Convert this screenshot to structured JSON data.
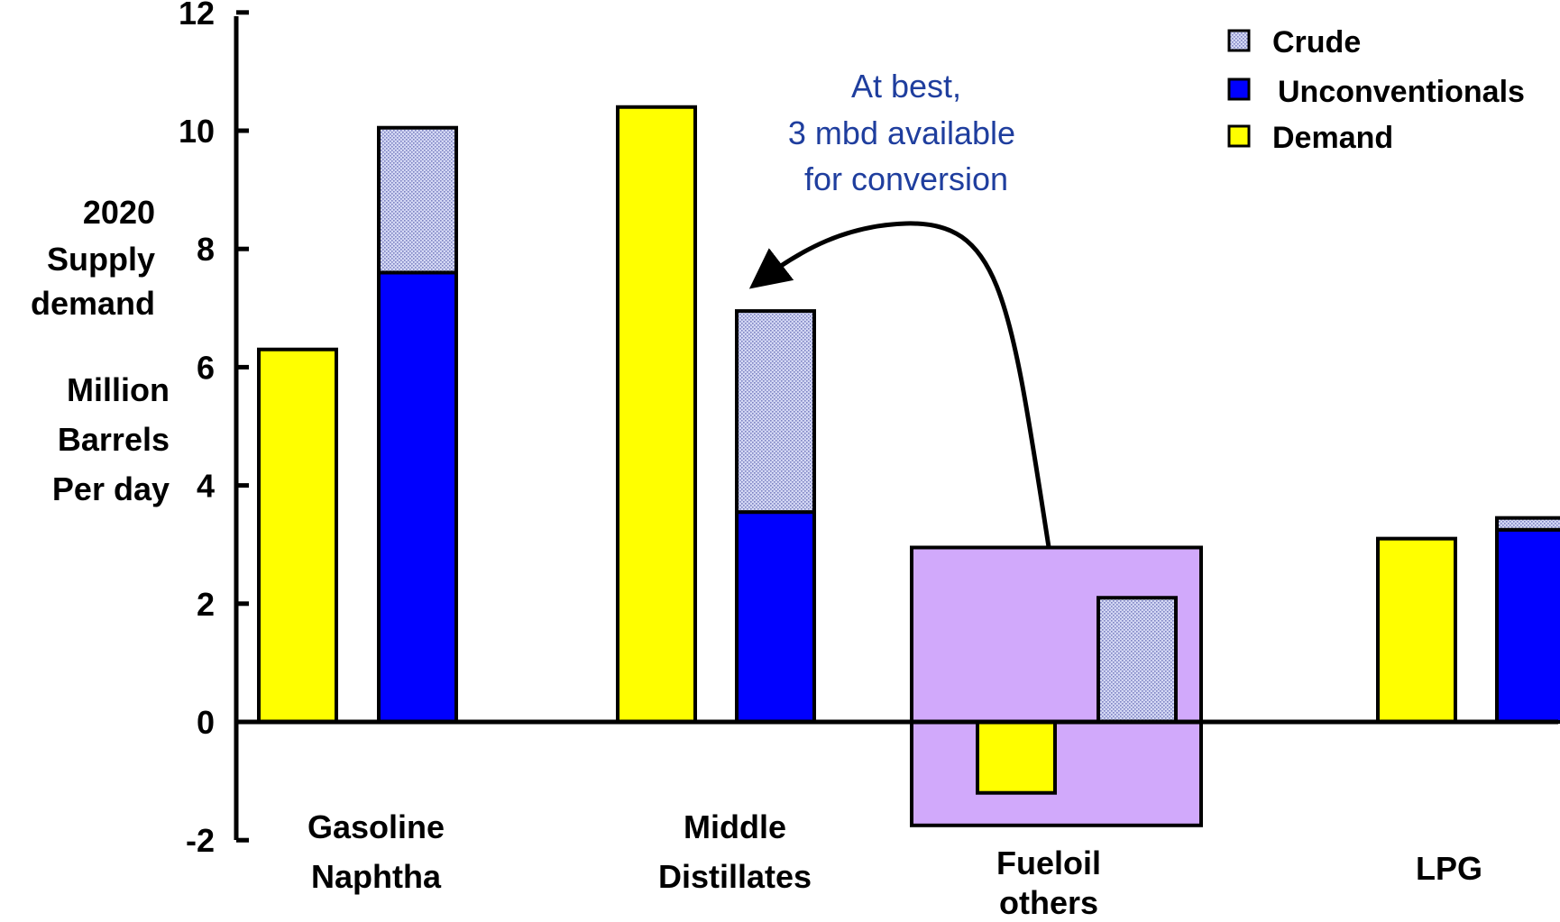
{
  "chart_data": {
    "type": "bar",
    "ylabel_lines": [
      "2020",
      "Supply",
      "demand"
    ],
    "ylabel_units_lines": [
      "Million",
      "Barrels",
      "Per day"
    ],
    "ylim": [
      -2,
      12
    ],
    "yticks": [
      12,
      10,
      8,
      6,
      4,
      2,
      0,
      -2
    ],
    "grid": false,
    "legend_position": "top-right",
    "legend": [
      {
        "name": "Crude",
        "pattern": "dotted",
        "color": "#c8cdf0"
      },
      {
        "name": "Unconventionals",
        "color": "#0000ff"
      },
      {
        "name": "Demand",
        "color": "#ffff00"
      }
    ],
    "categories": [
      {
        "label_lines": [
          "Gasoline",
          "Naphtha"
        ],
        "demand": 6.3,
        "unconventionals": 7.6,
        "crude": 2.45
      },
      {
        "label_lines": [
          "Middle",
          "Distillates"
        ],
        "demand": 10.4,
        "unconventionals": 3.55,
        "crude": 3.4
      },
      {
        "label_lines": [
          "Fueloil",
          "others"
        ],
        "demand": -1.2,
        "unconventionals": 0,
        "crude": 2.1,
        "highlighted": true,
        "highlight_range": [
          -1.75,
          2.95
        ]
      },
      {
        "label_lines": [
          "LPG"
        ],
        "demand": 3.1,
        "unconventionals": 3.25,
        "crude": 0.2
      }
    ],
    "annotation": {
      "lines": [
        "At best,",
        "3 mbd available",
        "for conversion"
      ],
      "from_category": "Fueloil others",
      "to_category": "Middle Distillates"
    },
    "colors": {
      "demand": "#ffff00",
      "unconventionals": "#0000ff",
      "crude": "#c8cdf0",
      "highlight_box": "#d1a9fb",
      "annotation_text": "#1f3e9e"
    }
  }
}
